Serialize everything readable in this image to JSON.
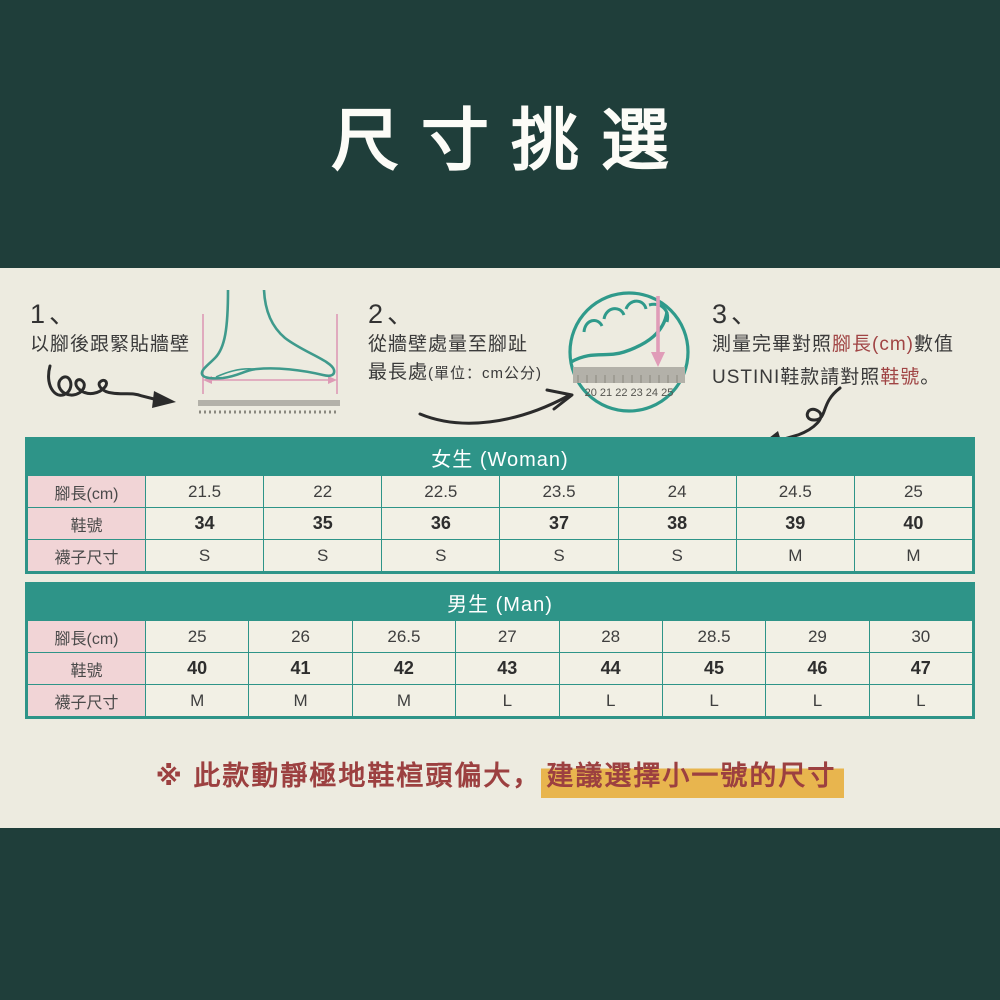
{
  "title": "尺寸挑選",
  "steps": {
    "step1": {
      "number": "1、",
      "text": "以腳後跟緊貼牆壁"
    },
    "step2": {
      "number": "2、",
      "line1": "從牆壁處量至腳趾",
      "line2": "最長處",
      "line2_note": "(單位：cm公分)",
      "ruler_numbers": "20 21 22 23 24 25"
    },
    "step3": {
      "number": "3、",
      "line1_pre": "測量完畢對照",
      "line1_red": "腳長(cm)",
      "line1_post": "數值",
      "line2_pre": "USTINI鞋款請對照",
      "line2_red": "鞋號",
      "line2_post": "。"
    }
  },
  "tables": [
    {
      "title": "女生 (Woman)",
      "rows": [
        {
          "label": "腳長(cm)",
          "bold": false,
          "values": [
            "21.5",
            "22",
            "22.5",
            "23.5",
            "24",
            "24.5",
            "25"
          ]
        },
        {
          "label": "鞋號",
          "bold": true,
          "values": [
            "34",
            "35",
            "36",
            "37",
            "38",
            "39",
            "40"
          ]
        },
        {
          "label": "襪子尺寸",
          "bold": false,
          "values": [
            "S",
            "S",
            "S",
            "S",
            "S",
            "M",
            "M"
          ]
        }
      ]
    },
    {
      "title": "男生 (Man)",
      "rows": [
        {
          "label": "腳長(cm)",
          "bold": false,
          "values": [
            "25",
            "26",
            "26.5",
            "27",
            "28",
            "28.5",
            "29",
            "30"
          ]
        },
        {
          "label": "鞋號",
          "bold": true,
          "values": [
            "40",
            "41",
            "42",
            "43",
            "44",
            "45",
            "46",
            "47"
          ]
        },
        {
          "label": "襪子尺寸",
          "bold": false,
          "values": [
            "M",
            "M",
            "M",
            "L",
            "L",
            "L",
            "L",
            "L"
          ]
        }
      ]
    }
  ],
  "note": {
    "prefix": "※ 此款動靜極地鞋楦頭偏大，",
    "highlight": "建議選擇小一號的尺寸"
  },
  "colors": {
    "background_teal": "#1f3e3a",
    "panel_beige": "#edebe0",
    "table_teal": "#2e9488",
    "label_pink": "#f1d4d6",
    "cell_cream": "#f2f0e5",
    "note_red": "#9c4040",
    "highlight_yellow": "#e8b54e",
    "illustration_teal": "#3f9a8c",
    "measure_pink": "#dd9ab5"
  }
}
